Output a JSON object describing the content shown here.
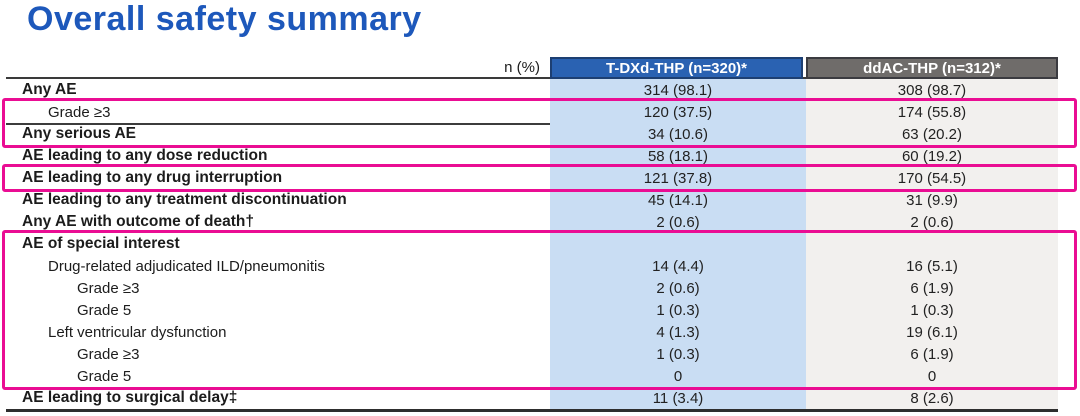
{
  "title": "Overall safety summary",
  "table": {
    "unit_label": "n (%)",
    "columns": [
      {
        "label": "T-DXd-THP (n=320)*",
        "header_bg": "#2a62b2",
        "body_bg": "#c9ddf3"
      },
      {
        "label": "ddAC-THP (n=312)*",
        "header_bg": "#6f6c6a",
        "body_bg": "#f2f0ee"
      }
    ],
    "rows": [
      {
        "label": "Any AE",
        "tdxd": "314 (98.1)",
        "ddac": "308 (98.7)"
      },
      {
        "label": "Grade ≥3",
        "tdxd": "120 (37.5)",
        "ddac": "174 (55.8)"
      },
      {
        "label": "Any serious AE",
        "tdxd": "34 (10.6)",
        "ddac": "63 (20.2)"
      },
      {
        "label": "AE leading to any dose reduction",
        "tdxd": "58 (18.1)",
        "ddac": "60 (19.2)"
      },
      {
        "label": "AE leading to any drug interruption",
        "tdxd": "121 (37.8)",
        "ddac": "170 (54.5)"
      },
      {
        "label": "AE leading to any treatment discontinuation",
        "tdxd": "45 (14.1)",
        "ddac": "31 (9.9)"
      },
      {
        "label": "Any AE with outcome of death†",
        "tdxd": "2 (0.6)",
        "ddac": "2 (0.6)"
      },
      {
        "label": "AE of special interest",
        "tdxd": "",
        "ddac": ""
      },
      {
        "label": "Drug-related adjudicated ILD/pneumonitis",
        "tdxd": "14 (4.4)",
        "ddac": "16 (5.1)"
      },
      {
        "label": "Grade ≥3",
        "tdxd": "2 (0.6)",
        "ddac": "6 (1.9)"
      },
      {
        "label": "Grade 5",
        "tdxd": "1 (0.3)",
        "ddac": "1 (0.3)"
      },
      {
        "label": "Left ventricular dysfunction",
        "tdxd": "4 (1.3)",
        "ddac": "19 (6.1)"
      },
      {
        "label": "Grade ≥3",
        "tdxd": "1 (0.3)",
        "ddac": "6 (1.9)"
      },
      {
        "label": "Grade 5",
        "tdxd": "0",
        "ddac": "0"
      },
      {
        "label": "AE leading to surgical delay‡",
        "tdxd": "11 (3.4)",
        "ddac": "8 (2.6)"
      }
    ]
  },
  "colors": {
    "title_blue": "#1d58bb",
    "highlight_pink": "#ea0d93",
    "tdxd_header": "#2a62b2",
    "tdxd_body": "#c9ddf3",
    "ddac_header": "#6f6c6a",
    "ddac_body": "#f2f0ee"
  }
}
